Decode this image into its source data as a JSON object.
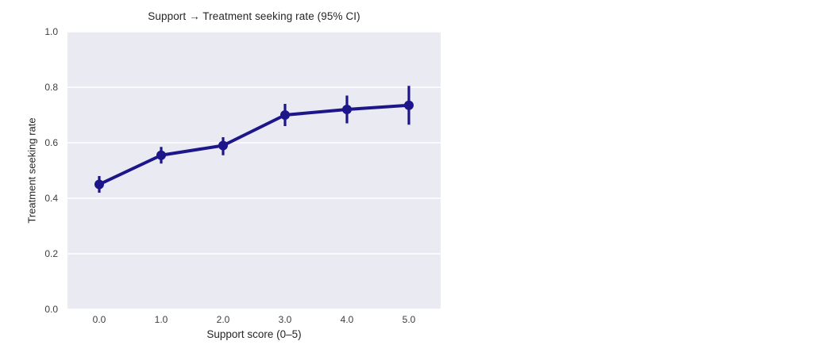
{
  "chart_data": {
    "type": "line",
    "title": "Support → Treatment seeking rate (95% CI)",
    "xlabel": "Support score (0–5)",
    "ylabel": "Treatment seeking rate",
    "x": [
      0,
      1,
      2,
      3,
      4,
      5
    ],
    "xtick_labels": [
      "0.0",
      "1.0",
      "2.0",
      "3.0",
      "4.0",
      "5.0"
    ],
    "yticks": [
      0.0,
      0.2,
      0.4,
      0.6,
      0.8,
      1.0
    ],
    "ytick_labels": [
      "0.0",
      "0.2",
      "0.4",
      "0.6",
      "0.8",
      "1.0"
    ],
    "ylim": [
      0.0,
      1.0
    ],
    "series": [
      {
        "name": "Treatment seeking rate",
        "y": [
          0.45,
          0.555,
          0.59,
          0.7,
          0.72,
          0.735
        ],
        "ci_low": [
          0.42,
          0.525,
          0.555,
          0.66,
          0.67,
          0.665
        ],
        "ci_high": [
          0.48,
          0.585,
          0.62,
          0.74,
          0.77,
          0.805
        ]
      }
    ],
    "error_bars": "95% CI",
    "grid": true,
    "legend": false,
    "colors": {
      "line": "#1c168a",
      "plot_background": "#eaeaf2",
      "gridline": "#ffffff",
      "title_text": "#262626",
      "tick_text": "#3d3d3d"
    }
  }
}
